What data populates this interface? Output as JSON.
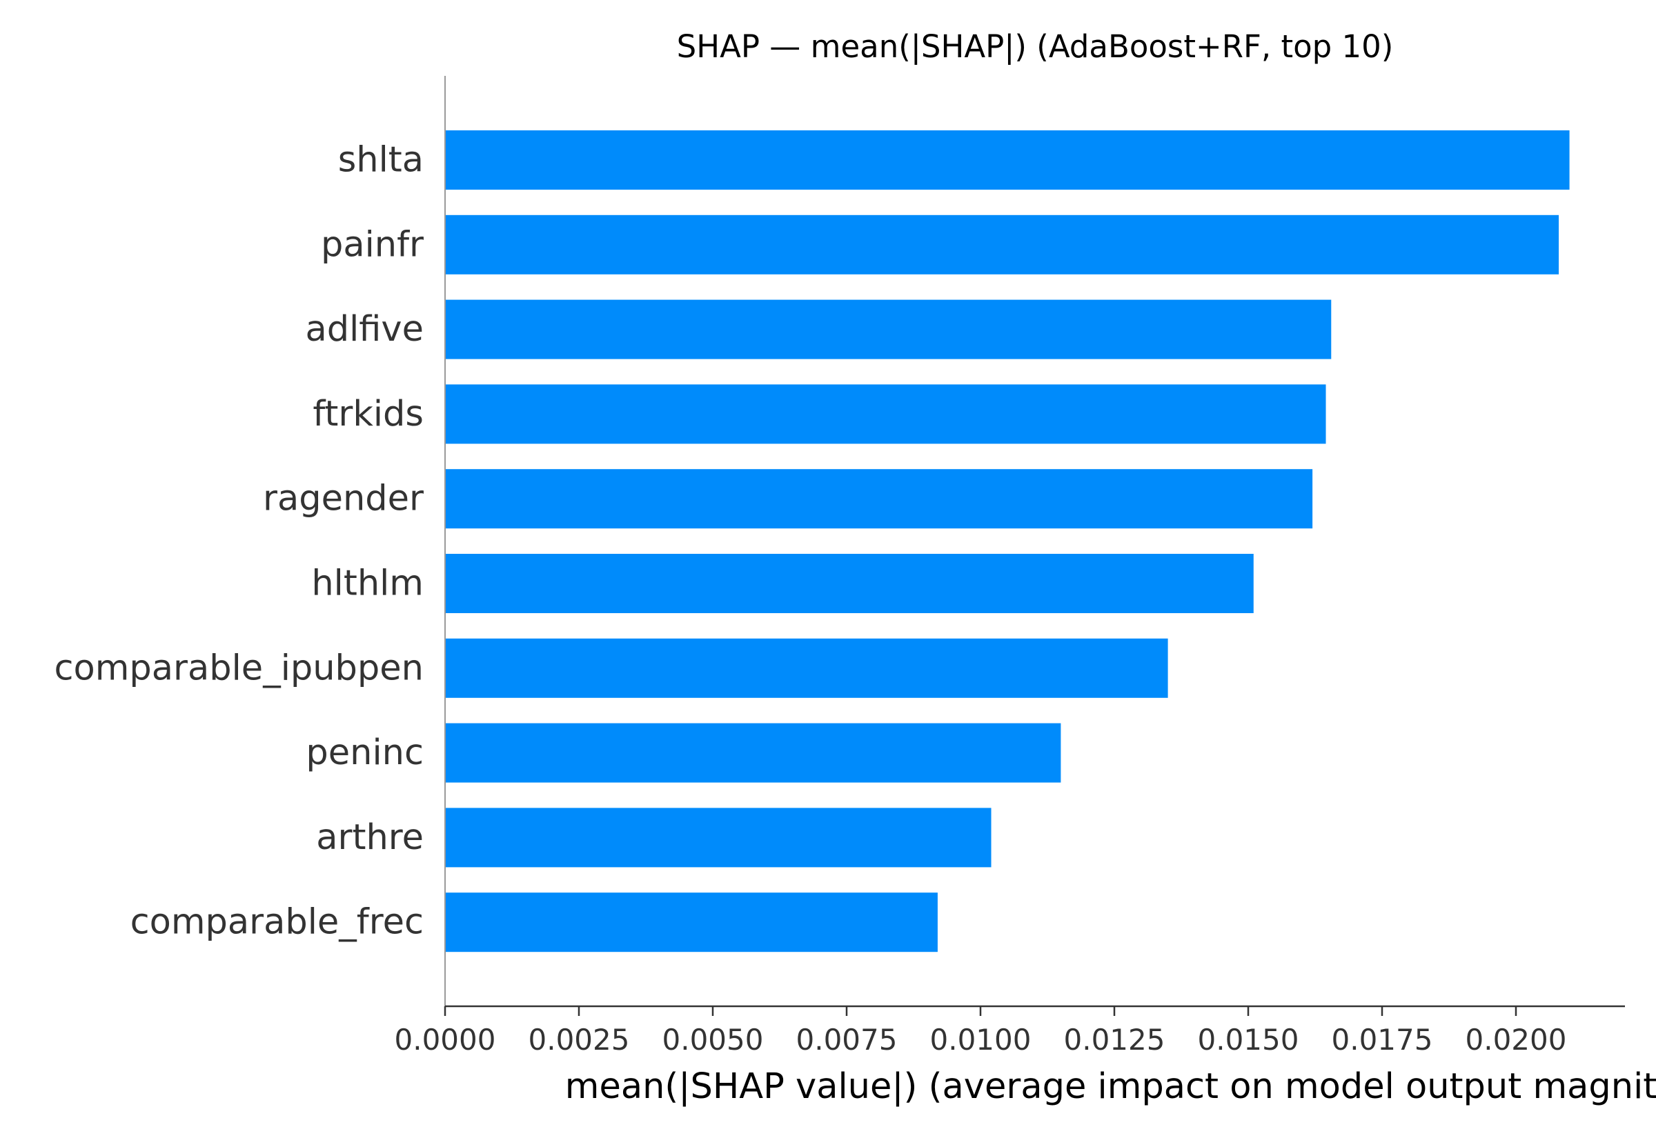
{
  "chart_data": {
    "type": "bar",
    "orientation": "horizontal",
    "title": "SHAP — mean(|SHAP|) (AdaBoost+RF, top 10)",
    "xlabel": "mean(|SHAP value|) (average impact on model output magnitude)",
    "ylabel": "",
    "categories": [
      "shlta",
      "painfr",
      "adlfive",
      "ftrkids",
      "ragender",
      "hlthlm",
      "comparable_ipubpen",
      "peninc",
      "arthre",
      "comparable_frec"
    ],
    "values": [
      0.021,
      0.0208,
      0.01655,
      0.01645,
      0.0162,
      0.0151,
      0.0135,
      0.0115,
      0.0102,
      0.0092
    ],
    "xlim": [
      0,
      0.0221
    ],
    "xticks": [
      0.0,
      0.0025,
      0.005,
      0.0075,
      0.01,
      0.0125,
      0.015,
      0.0175,
      0.02
    ],
    "xtick_labels": [
      "0.0000",
      "0.0025",
      "0.0050",
      "0.0075",
      "0.0100",
      "0.0125",
      "0.0150",
      "0.0175",
      "0.0200"
    ],
    "grid": false,
    "colors": {
      "bar": "#008BFB",
      "axis": "#333333",
      "left_spine": "#999999"
    }
  }
}
